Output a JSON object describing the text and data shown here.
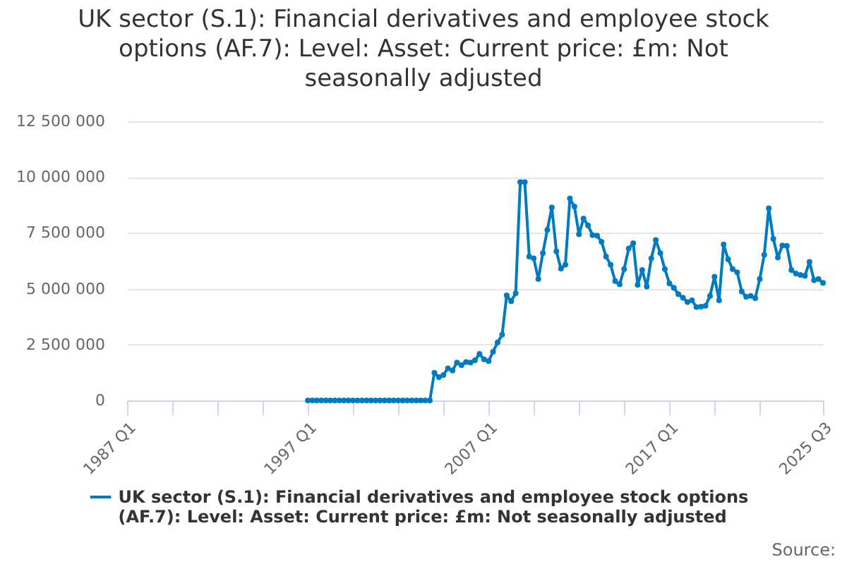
{
  "chart_data": {
    "type": "line",
    "title": "UK sector (S.1): Financial derivatives and employee stock options (AF.7): Level: Asset: Current price: £m: Not seasonally adjusted",
    "x": [
      "1997-01",
      "1997-04",
      "1997-07",
      "1997-10",
      "1998-01",
      "1998-04",
      "1998-07",
      "1998-10",
      "1999-01",
      "1999-04",
      "1999-07",
      "1999-10",
      "2000-01",
      "2000-04",
      "2000-07",
      "2000-10",
      "2001-01",
      "2001-04",
      "2001-07",
      "2001-10",
      "2002-01",
      "2002-04",
      "2002-07",
      "2002-10",
      "2003-01",
      "2003-04",
      "2003-07",
      "2003-10",
      "2004-01",
      "2004-04",
      "2004-07",
      "2004-10",
      "2005-01",
      "2005-04",
      "2005-07",
      "2005-10",
      "2006-01",
      "2006-04",
      "2006-07",
      "2006-10",
      "2007-01",
      "2007-04",
      "2007-07",
      "2007-10",
      "2008-01",
      "2008-04",
      "2008-07",
      "2008-10",
      "2009-01",
      "2009-04",
      "2009-07",
      "2009-10",
      "2010-01",
      "2010-04",
      "2010-07",
      "2010-10",
      "2011-01",
      "2011-04",
      "2011-07",
      "2011-10",
      "2012-01",
      "2012-04",
      "2012-07",
      "2012-10",
      "2013-01",
      "2013-04",
      "2013-07",
      "2013-10",
      "2014-01",
      "2014-04",
      "2014-07",
      "2014-10",
      "2015-01",
      "2015-04",
      "2015-07",
      "2015-10",
      "2016-01",
      "2016-04",
      "2016-07",
      "2016-10",
      "2017-01",
      "2017-04",
      "2017-07",
      "2017-10",
      "2018-01",
      "2018-04",
      "2018-07",
      "2018-10",
      "2019-01",
      "2019-04",
      "2019-07",
      "2019-10",
      "2020-01",
      "2020-04",
      "2020-07",
      "2020-10",
      "2021-01",
      "2021-04",
      "2021-07",
      "2021-10",
      "2022-01",
      "2022-04",
      "2022-07",
      "2022-10",
      "2023-01",
      "2023-04",
      "2023-07",
      "2023-10",
      "2024-01",
      "2024-04",
      "2024-07",
      "2024-10",
      "2025-01",
      "2025-04",
      "2025-07"
    ],
    "series": [
      {
        "name": "UK sector (S.1): Financial derivatives and employee stock options (AF.7): Level: Asset: Current price: £m: Not seasonally adjusted",
        "color": "#007bc2",
        "values": [
          0,
          0,
          0,
          0,
          0,
          0,
          0,
          0,
          0,
          0,
          0,
          0,
          0,
          0,
          0,
          0,
          0,
          0,
          0,
          0,
          0,
          0,
          0,
          0,
          0,
          0,
          0,
          0,
          1240000,
          1040000,
          1140000,
          1440000,
          1340000,
          1700000,
          1580000,
          1720000,
          1700000,
          1800000,
          2080000,
          1840000,
          1760000,
          2180000,
          2600000,
          2940000,
          4700000,
          4440000,
          4800000,
          9780000,
          9780000,
          6440000,
          6360000,
          5440000,
          6600000,
          7640000,
          8640000,
          6680000,
          5900000,
          6080000,
          9040000,
          8680000,
          7440000,
          8140000,
          7840000,
          7400000,
          7380000,
          7100000,
          6440000,
          6080000,
          5340000,
          5200000,
          5880000,
          6800000,
          7040000,
          5180000,
          5840000,
          5100000,
          6360000,
          7180000,
          6600000,
          5880000,
          5240000,
          5040000,
          4760000,
          4600000,
          4400000,
          4480000,
          4180000,
          4200000,
          4240000,
          4680000,
          5540000,
          4480000,
          6980000,
          6320000,
          5880000,
          5740000,
          4880000,
          4640000,
          4680000,
          4580000,
          5440000,
          6520000,
          8600000,
          7240000,
          6400000,
          6940000,
          6920000,
          5840000,
          5680000,
          5620000,
          5580000,
          6200000,
          5380000,
          5440000,
          5260000
        ]
      }
    ],
    "xlim": [
      "1987-01",
      "2025-07"
    ],
    "xticks": [
      {
        "value": "1987-01",
        "label": "1987 Q1"
      },
      {
        "value": "1989-07",
        "label": null
      },
      {
        "value": "1992-01",
        "label": null
      },
      {
        "value": "1994-07",
        "label": null
      },
      {
        "value": "1997-01",
        "label": "1997 Q1"
      },
      {
        "value": "1999-07",
        "label": null
      },
      {
        "value": "2002-01",
        "label": null
      },
      {
        "value": "2004-07",
        "label": null
      },
      {
        "value": "2007-01",
        "label": "2007 Q1"
      },
      {
        "value": "2009-07",
        "label": null
      },
      {
        "value": "2012-01",
        "label": null
      },
      {
        "value": "2014-07",
        "label": null
      },
      {
        "value": "2017-01",
        "label": "2017 Q1"
      },
      {
        "value": "2019-07",
        "label": null
      },
      {
        "value": "2022-01",
        "label": null
      },
      {
        "value": "2025-07",
        "label": "2025 Q3"
      }
    ],
    "ylim": [
      0,
      12500000
    ],
    "yticks": [
      0,
      {
        "value": 2500000,
        "label": "2 500 000"
      },
      {
        "value": 5000000,
        "label": "5 000 000"
      },
      {
        "value": 7500000,
        "label": "7 500 000"
      },
      {
        "value": 10000000,
        "label": "10 000 000"
      },
      {
        "value": 12500000,
        "label": "12 500 000"
      }
    ],
    "grid": "y",
    "legend": "bottom",
    "marker": "circle",
    "line_style": "solid",
    "annotations": [
      "Source:"
    ]
  }
}
